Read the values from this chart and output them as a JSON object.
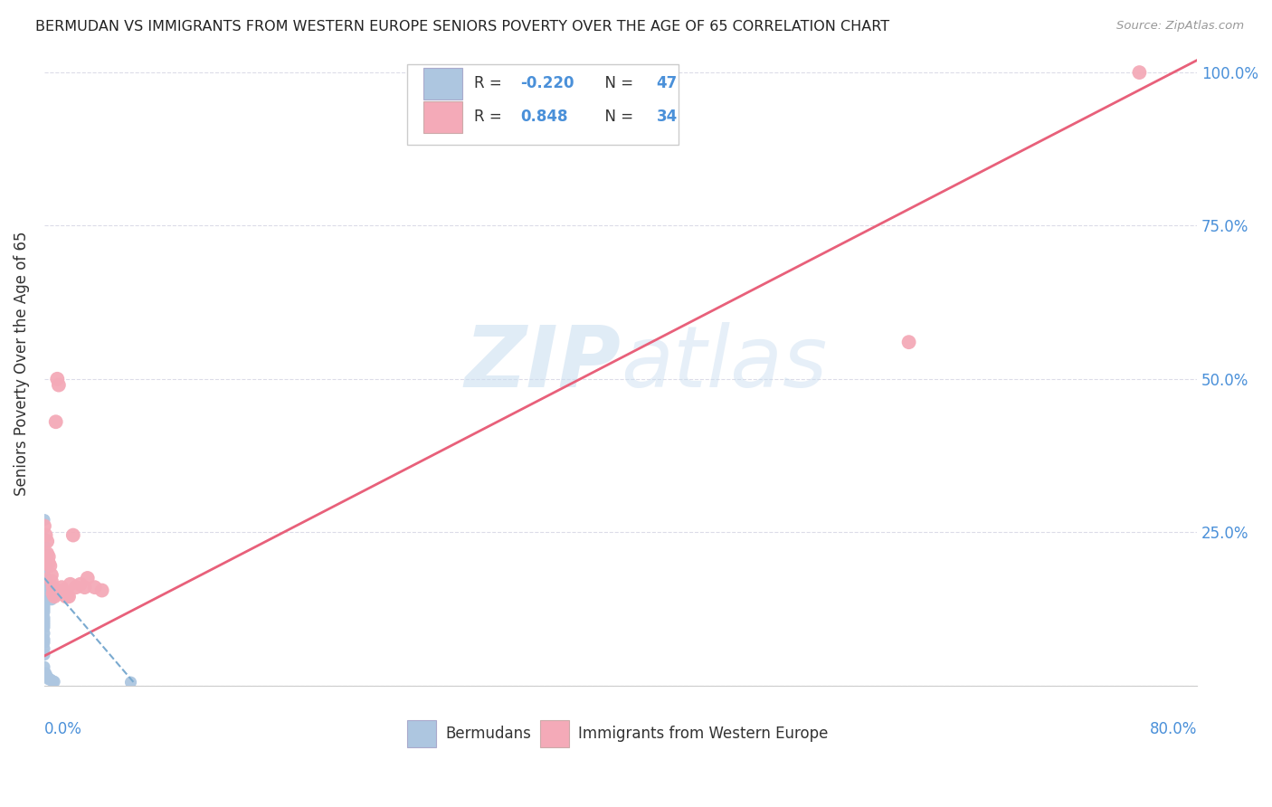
{
  "title": "BERMUDAN VS IMMIGRANTS FROM WESTERN EUROPE SENIORS POVERTY OVER THE AGE OF 65 CORRELATION CHART",
  "source": "Source: ZipAtlas.com",
  "ylabel": "Seniors Poverty Over the Age of 65",
  "xlim": [
    0.0,
    0.8
  ],
  "ylim": [
    0.0,
    1.05
  ],
  "watermark_zip": "ZIP",
  "watermark_atlas": "atlas",
  "blue_color": "#adc6e0",
  "pink_color": "#f4aab8",
  "blue_line_color": "#7aaad0",
  "pink_line_color": "#e8607a",
  "background_color": "#ffffff",
  "grid_color": "#dcdce8",
  "blue_x": [
    0.0,
    0.0,
    0.0,
    0.0,
    0.0,
    0.0,
    0.0,
    0.0,
    0.0,
    0.0,
    0.0,
    0.0,
    0.0,
    0.0,
    0.0,
    0.0,
    0.0,
    0.0,
    0.0,
    0.0,
    0.0,
    0.0,
    0.0,
    0.0,
    0.0,
    0.0,
    0.0,
    0.0,
    0.0,
    0.0,
    0.0,
    0.0,
    0.001,
    0.001,
    0.001,
    0.002,
    0.002,
    0.003,
    0.003,
    0.004,
    0.004,
    0.005,
    0.005,
    0.006,
    0.007,
    0.06,
    0.0
  ],
  "blue_y": [
    0.27,
    0.24,
    0.23,
    0.22,
    0.215,
    0.205,
    0.2,
    0.195,
    0.19,
    0.185,
    0.18,
    0.175,
    0.17,
    0.165,
    0.16,
    0.155,
    0.15,
    0.145,
    0.14,
    0.135,
    0.13,
    0.125,
    0.12,
    0.11,
    0.105,
    0.1,
    0.095,
    0.085,
    0.075,
    0.07,
    0.06,
    0.05,
    0.2,
    0.195,
    0.02,
    0.17,
    0.015,
    0.16,
    0.01,
    0.15,
    0.01,
    0.14,
    0.008,
    0.007,
    0.006,
    0.005,
    0.03
  ],
  "pink_x": [
    0.0,
    0.001,
    0.002,
    0.002,
    0.003,
    0.003,
    0.004,
    0.005,
    0.005,
    0.006,
    0.006,
    0.007,
    0.007,
    0.008,
    0.008,
    0.009,
    0.01,
    0.01,
    0.012,
    0.013,
    0.014,
    0.015,
    0.016,
    0.017,
    0.018,
    0.02,
    0.022,
    0.025,
    0.028,
    0.03,
    0.035,
    0.04,
    0.6,
    0.76
  ],
  "pink_y": [
    0.26,
    0.245,
    0.235,
    0.215,
    0.21,
    0.2,
    0.195,
    0.18,
    0.17,
    0.16,
    0.15,
    0.15,
    0.145,
    0.43,
    0.15,
    0.5,
    0.49,
    0.15,
    0.16,
    0.155,
    0.15,
    0.145,
    0.145,
    0.145,
    0.165,
    0.245,
    0.16,
    0.165,
    0.16,
    0.175,
    0.16,
    0.155,
    0.56,
    1.0
  ],
  "pink_line_x0": 0.0,
  "pink_line_y0": 0.048,
  "pink_line_x1": 0.8,
  "pink_line_y1": 1.02,
  "blue_line_x0": 0.0,
  "blue_line_y0": 0.175,
  "blue_line_x1": 0.062,
  "blue_line_y1": 0.005
}
